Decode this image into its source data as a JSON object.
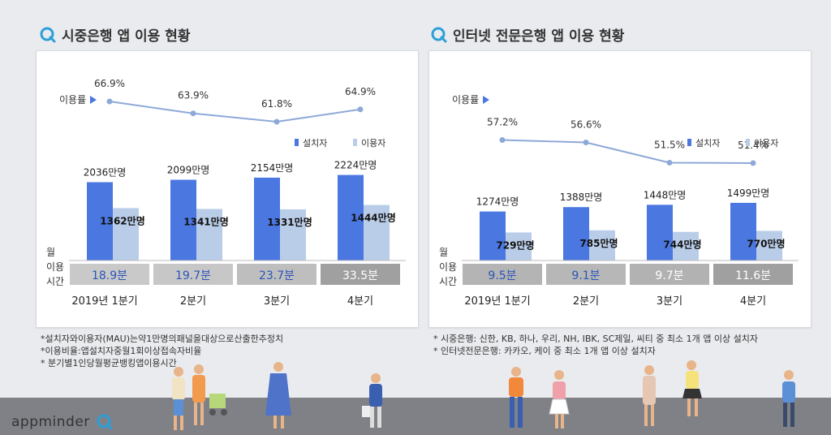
{
  "panels": [
    {
      "title": "시중은행 앱 이용 현황",
      "rate_label": "이용률",
      "legend": [
        "설치자",
        "이용자"
      ],
      "time_label_lines": [
        "월",
        "이용",
        "시간"
      ],
      "notes": [
        "*설치자와이용자(MAU)는약1만명의패널을대상으로산출한추정치",
        "*이용비율:앱설치자중월1회이상접속자비율",
        "* 분기별1인당월평균뱅킹앱이용시간"
      ]
    },
    {
      "title": "인터넷 전문은행 앱 이용 현황",
      "rate_label": "이용률",
      "legend": [
        "설치자",
        "이용자"
      ],
      "time_label_lines": [
        "월",
        "이용",
        "시간"
      ],
      "notes": [
        "* 시중은행: 신한, KB, 하나, 우리, NH, IBK, SC제일, 씨티 중 최소 1개 앱 이상 설치자",
        "* 인터넷전문은행: 카카오, 케이 중 최소 1개 앱 이상 설치자"
      ]
    }
  ],
  "logo": {
    "text": "appminder"
  },
  "colors": {
    "installer": "#4a77e0",
    "user": "#b9cde8",
    "line": "#8ea9d8",
    "time_dark": "#a0a0a0",
    "time_light": "#dcdcdc",
    "time_text": "#2a55b8"
  },
  "chart_data": [
    {
      "type": "bar",
      "title": "시중은행 앱 이용 현황",
      "categories": [
        "2019년 1분기",
        "2분기",
        "3분기",
        "4분기"
      ],
      "series": [
        {
          "name": "설치자",
          "values": [
            2036,
            2099,
            2154,
            2224
          ],
          "labels": [
            "2036만명",
            "2099만명",
            "2154만명",
            "2224만명"
          ]
        },
        {
          "name": "이용자",
          "values": [
            1362,
            1341,
            1331,
            1444
          ],
          "labels": [
            "1362만명",
            "1341만명",
            "1331만명",
            "1444만명"
          ]
        }
      ],
      "rate": {
        "name": "이용률",
        "values": [
          66.9,
          63.9,
          61.8,
          64.9
        ],
        "labels": [
          "66.9%",
          "63.9%",
          "61.8%",
          "64.9%"
        ]
      },
      "usage_time": {
        "values": [
          18.9,
          19.7,
          23.7,
          33.5
        ],
        "labels": [
          "18.9분",
          "19.7분",
          "23.7분",
          "33.5분"
        ]
      },
      "ylim": [
        0,
        2224
      ]
    },
    {
      "type": "bar",
      "title": "인터넷 전문은행 앱 이용 현황",
      "categories": [
        "2019년 1분기",
        "2분기",
        "3분기",
        "4분기"
      ],
      "series": [
        {
          "name": "설치자",
          "values": [
            1274,
            1388,
            1448,
            1499
          ],
          "labels": [
            "1274만명",
            "1388만명",
            "1448만명",
            "1499만명"
          ]
        },
        {
          "name": "이용자",
          "values": [
            729,
            785,
            744,
            770
          ],
          "labels": [
            "729만명",
            "785만명",
            "744만명",
            "770만명"
          ]
        }
      ],
      "rate": {
        "name": "이용률",
        "values": [
          57.2,
          56.6,
          51.5,
          51.4
        ],
        "labels": [
          "57.2%",
          "56.6%",
          "51.5%",
          "51.4%"
        ]
      },
      "usage_time": {
        "values": [
          9.5,
          9.1,
          9.7,
          11.6
        ],
        "labels": [
          "9.5분",
          "9.1분",
          "9.7분",
          "11.6분"
        ]
      },
      "ylim": [
        0,
        2224
      ]
    }
  ]
}
